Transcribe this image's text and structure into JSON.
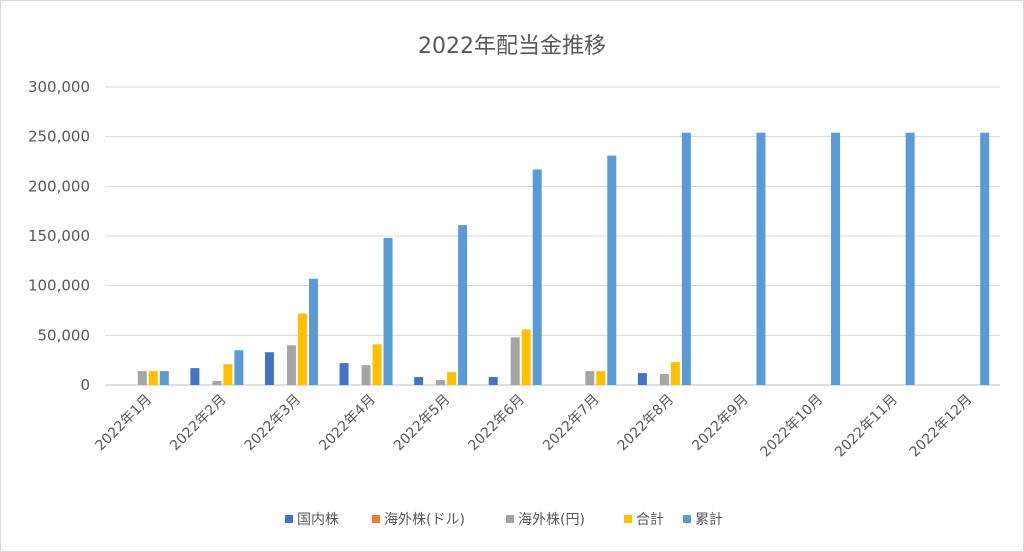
{
  "chart_data": {
    "type": "bar",
    "title": "2022年配当金推移",
    "categories": [
      "2022年1月",
      "2022年2月",
      "2022年3月",
      "2022年4月",
      "2022年5月",
      "2022年6月",
      "2022年7月",
      "2022年8月",
      "2022年9月",
      "2022年10月",
      "2022年11月",
      "2022年12月"
    ],
    "series": [
      {
        "name": "国内株",
        "color": "#4472c4",
        "values": [
          0,
          17000,
          33000,
          22000,
          8000,
          8000,
          0,
          12000,
          0,
          0,
          0,
          0
        ]
      },
      {
        "name": "海外株(ドル)",
        "color": "#ed7d31",
        "values": [
          0,
          0,
          0,
          0,
          0,
          0,
          0,
          0,
          0,
          0,
          0,
          0
        ]
      },
      {
        "name": "海外株(円)",
        "color": "#a5a5a5",
        "values": [
          14000,
          4000,
          40000,
          20000,
          5000,
          48000,
          14000,
          11000,
          0,
          0,
          0,
          0
        ]
      },
      {
        "name": "合計",
        "color": "#ffc000",
        "values": [
          14000,
          21000,
          72000,
          41000,
          13000,
          56000,
          14000,
          23000,
          0,
          0,
          0,
          0
        ]
      },
      {
        "name": "累計",
        "color": "#5b9bd5",
        "values": [
          14000,
          35000,
          107000,
          148000,
          161000,
          217000,
          231000,
          254000,
          254000,
          254000,
          254000,
          254000
        ]
      }
    ],
    "yticks": [
      "0",
      "50,000",
      "100,000",
      "150,000",
      "200,000",
      "250,000",
      "300,000"
    ],
    "ylim": [
      0,
      300000
    ],
    "grid": true,
    "legend": "bottom"
  }
}
